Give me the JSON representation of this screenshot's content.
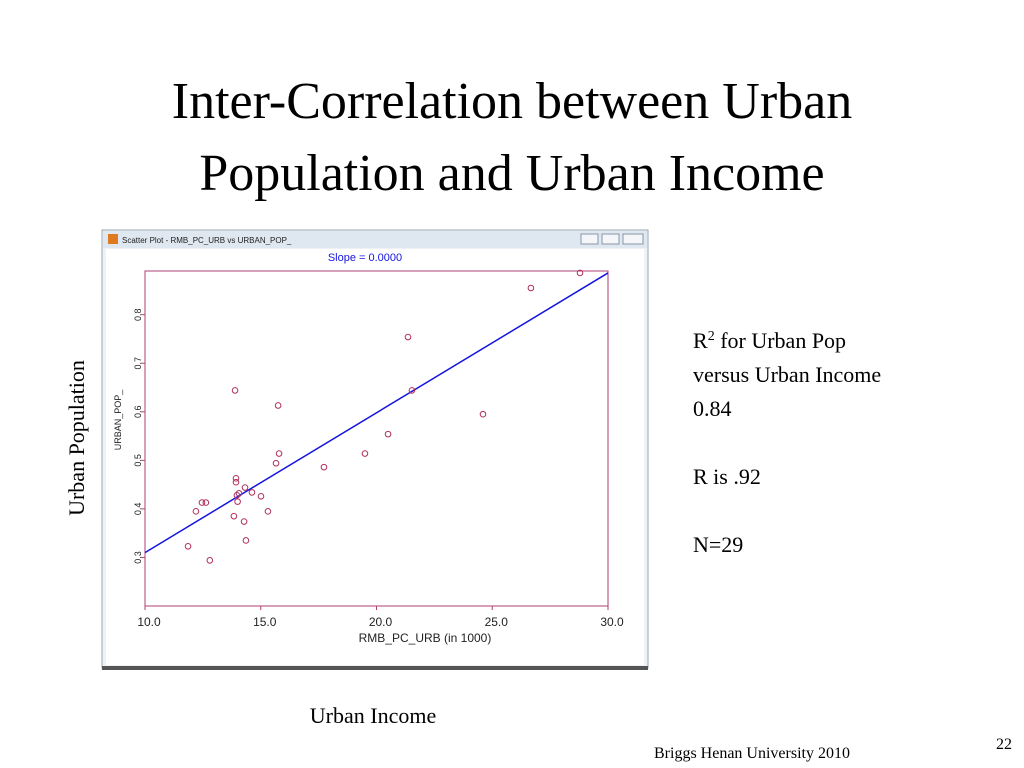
{
  "slide": {
    "title": [
      "Inter-Correlation between Urban",
      "Population and Urban Income"
    ],
    "y_label": "Urban Population",
    "x_label": "Urban Income",
    "notes": {
      "r2_symbol": "R",
      "r2_sup": "2",
      "r2_text": " for Urban Pop",
      "r2_text2": "versus Urban Income",
      "r2_value": "0.84",
      "r": "R is .92",
      "n": "N=29"
    },
    "footer": "Briggs  Henan University 2010",
    "page": "22"
  },
  "chart_data": {
    "type": "scatter",
    "window_title": "Scatter Plot - RMB_PC_URB vs URBAN_POP_",
    "title": "Slope =  0.0000",
    "xlabel": "RMB_PC_URB (in 1000)",
    "ylabel": "URBAN_POP_",
    "xlim": [
      10,
      30
    ],
    "ylim": [
      0.2,
      0.89
    ],
    "xticks": [
      {
        "value": 10,
        "label": "10.0"
      },
      {
        "value": 15,
        "label": "15.0"
      },
      {
        "value": 20,
        "label": "20.0"
      },
      {
        "value": 25,
        "label": "25.0"
      },
      {
        "value": 30,
        "label": "30.0"
      }
    ],
    "yticks": [
      0.3,
      0.4,
      0.5,
      0.6,
      0.7,
      0.8
    ],
    "color": "#b0305a",
    "x": [
      11.86,
      12.2,
      12.46,
      12.63,
      12.8,
      13.84,
      13.89,
      13.93,
      13.93,
      13.97,
      14.0,
      14.06,
      14.28,
      14.32,
      14.36,
      14.62,
      15.01,
      15.31,
      15.66,
      15.75,
      15.79,
      17.73,
      19.5,
      20.5,
      21.36,
      21.53,
      24.6,
      26.67,
      28.79
    ],
    "y": [
      0.323,
      0.395,
      0.413,
      0.413,
      0.294,
      0.385,
      0.644,
      0.463,
      0.455,
      0.428,
      0.415,
      0.432,
      0.374,
      0.444,
      0.335,
      0.434,
      0.426,
      0.395,
      0.494,
      0.613,
      0.514,
      0.486,
      0.514,
      0.554,
      0.754,
      0.644,
      0.595,
      0.855,
      0.886
    ],
    "trendline": {
      "x": [
        10,
        30
      ],
      "y": [
        0.31,
        0.886
      ],
      "color": "#1414e0"
    }
  }
}
